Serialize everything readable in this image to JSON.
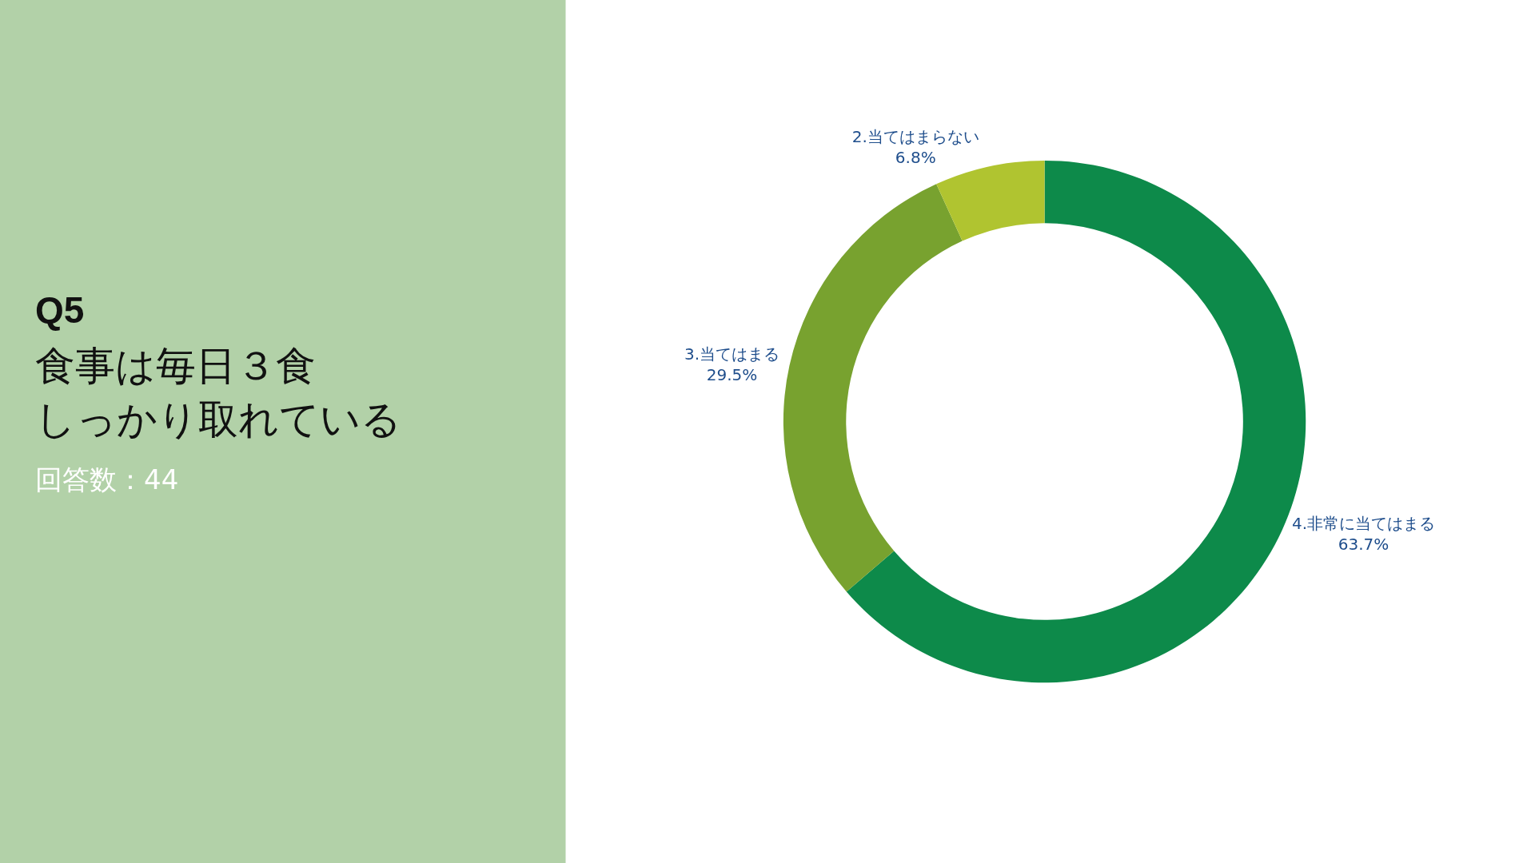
{
  "chart_data": {
    "type": "donut",
    "title": "Q5",
    "subtitle": "食事は毎日３食",
    "annotations": [
      "しっかり取れている",
      "回答数：44"
    ],
    "categories": [
      "4.非常に当てはまる",
      "3.当てはまる",
      "2.当てはまらない"
    ],
    "values": [
      63.7,
      29.5,
      6.8
    ],
    "value_labels": [
      "63.7%",
      "29.5%",
      "6.8%"
    ],
    "colors": [
      "#0d8a4a",
      "#78a22f",
      "#b0c430"
    ],
    "legend": false
  }
}
